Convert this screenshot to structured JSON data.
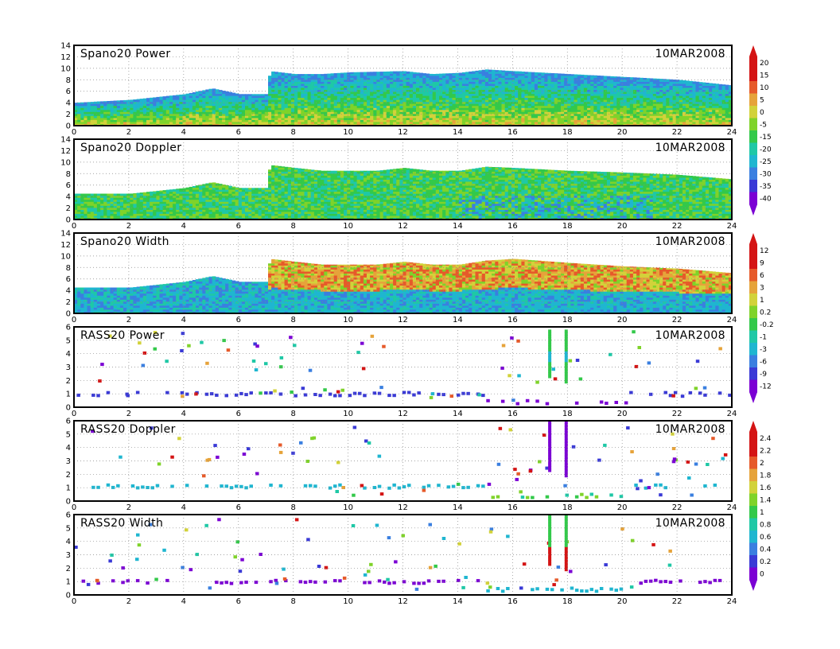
{
  "figure": {
    "date_label": "10MAR2008",
    "x_ticks": [
      "0",
      "2",
      "4",
      "6",
      "8",
      "10",
      "12",
      "14",
      "16",
      "18",
      "20",
      "22",
      "24"
    ]
  },
  "colors": {
    "power_scale": [
      "#7b00d4",
      "#3a3ad6",
      "#3a7fe0",
      "#1fb6d0",
      "#1fc8a6",
      "#33c94a",
      "#7fd32a",
      "#d2d23a",
      "#e6a33a",
      "#e65a2a",
      "#d41414"
    ],
    "rass_scale": [
      "#7b00d4",
      "#3a3ad6",
      "#3a7fe0",
      "#1fb6d0",
      "#1fc8a6",
      "#33c94a",
      "#7fd32a",
      "#d2d23a",
      "#e6a33a",
      "#e65a2a",
      "#d41414"
    ]
  },
  "chart_data": [
    {
      "type": "heatmap",
      "title": "Spano20 Power",
      "date": "10MAR2008",
      "xlabel": "",
      "ylabel": "",
      "xlim": [
        0,
        24
      ],
      "ylim": [
        0,
        14
      ],
      "y_ticks": [
        "0",
        "2",
        "4",
        "6",
        "8",
        "10",
        "12",
        "14"
      ],
      "colorbar": [
        "20",
        "15",
        "10",
        "5",
        "0",
        "-5",
        "-15",
        "-20",
        "-25",
        "-30",
        "-35",
        "-40"
      ],
      "echo_top": [
        [
          0,
          4
        ],
        [
          2,
          4.5
        ],
        [
          4,
          5.5
        ],
        [
          5,
          6.5
        ],
        [
          6,
          5.5
        ],
        [
          7,
          5.5
        ],
        [
          7.1,
          9.5
        ],
        [
          8,
          9
        ],
        [
          9,
          9
        ],
        [
          10,
          9.3
        ],
        [
          11,
          9.4
        ],
        [
          12,
          9.5
        ],
        [
          13,
          9
        ],
        [
          14,
          9.2
        ],
        [
          15,
          9.8
        ],
        [
          16,
          9.5
        ],
        [
          18,
          9
        ],
        [
          20,
          8.5
        ],
        [
          22,
          8
        ],
        [
          24,
          7
        ]
      ],
      "grid": true
    },
    {
      "type": "heatmap",
      "title": "Spano20 Doppler",
      "date": "10MAR2008",
      "xlabel": "",
      "ylabel": "",
      "xlim": [
        0,
        24
      ],
      "ylim": [
        0,
        14
      ],
      "y_ticks": [
        "0",
        "2",
        "4",
        "6",
        "8",
        "10",
        "12",
        "14"
      ],
      "echo_top": [
        [
          0,
          4.5
        ],
        [
          2,
          4.5
        ],
        [
          4,
          5.5
        ],
        [
          5,
          6.5
        ],
        [
          6,
          5.5
        ],
        [
          7,
          5.5
        ],
        [
          7.1,
          9.5
        ],
        [
          8,
          9
        ],
        [
          9,
          8.5
        ],
        [
          10,
          8.5
        ],
        [
          11,
          8.5
        ],
        [
          12,
          9
        ],
        [
          13,
          8.5
        ],
        [
          14,
          8.5
        ],
        [
          15,
          9.2
        ],
        [
          16,
          9
        ],
        [
          18,
          8.5
        ],
        [
          20,
          8.2
        ],
        [
          22,
          7.8
        ],
        [
          24,
          7
        ]
      ],
      "grid": true
    },
    {
      "type": "heatmap",
      "title": "Spano20 Width",
      "date": "10MAR2008",
      "xlabel": "",
      "ylabel": "",
      "xlim": [
        0,
        24
      ],
      "ylim": [
        0,
        14
      ],
      "y_ticks": [
        "0",
        "2",
        "4",
        "6",
        "8",
        "10",
        "12",
        "14"
      ],
      "colorbar": [
        "12",
        "9",
        "6",
        "3",
        "1",
        "0.2",
        "-0.2",
        "-1",
        "-3",
        "-6",
        "-9",
        "-12"
      ],
      "echo_top": [
        [
          0,
          4.5
        ],
        [
          2,
          4.5
        ],
        [
          4,
          5.5
        ],
        [
          5,
          6.5
        ],
        [
          6,
          5.5
        ],
        [
          7,
          5.5
        ],
        [
          7.1,
          9.5
        ],
        [
          8,
          9
        ],
        [
          9,
          8.5
        ],
        [
          10,
          8.5
        ],
        [
          11,
          8.5
        ],
        [
          12,
          9
        ],
        [
          13,
          8.5
        ],
        [
          14,
          8.5
        ],
        [
          15,
          9.2
        ],
        [
          16,
          9.5
        ],
        [
          18,
          8.8
        ],
        [
          20,
          8.2
        ],
        [
          22,
          7.8
        ],
        [
          24,
          7
        ]
      ],
      "grid": true
    },
    {
      "type": "scatter",
      "title": "RASS20 Power",
      "date": "10MAR2008",
      "xlabel": "",
      "ylabel": "",
      "xlim": [
        0,
        24
      ],
      "ylim": [
        0,
        6
      ],
      "y_ticks": [
        "0",
        "1",
        "2",
        "3",
        "4",
        "5",
        "6"
      ],
      "band_levels": [
        1.1,
        0.5
      ],
      "vertical_bars": [
        [
          17.3,
          2.2,
          5.8
        ],
        [
          17.9,
          1.8,
          5.8
        ]
      ],
      "grid": true
    },
    {
      "type": "scatter",
      "title": "RASS20 Doppler",
      "date": "10MAR2008",
      "xlabel": "",
      "ylabel": "",
      "xlim": [
        0,
        24
      ],
      "ylim": [
        0,
        6
      ],
      "y_ticks": [
        "0",
        "1",
        "2",
        "3",
        "4",
        "5",
        "6"
      ],
      "colorbar": [
        "2.4",
        "2.2",
        "2",
        "1.8",
        "1.6",
        "1.4",
        "1",
        "0.8",
        "0.6",
        "0.4",
        "0.2",
        "0"
      ],
      "band_levels": [
        1.2,
        0.5
      ],
      "vertical_bars": [
        [
          17.3,
          2.2,
          5.9
        ],
        [
          17.9,
          1.8,
          5.9
        ]
      ],
      "grid": true
    },
    {
      "type": "scatter",
      "title": "RASS20 Width",
      "date": "10MAR2008",
      "xlabel": "",
      "ylabel": "",
      "xlim": [
        0,
        24
      ],
      "ylim": [
        0,
        6
      ],
      "y_ticks": [
        "0",
        "1",
        "2",
        "3",
        "4",
        "5",
        "6"
      ],
      "band_levels": [
        1.1,
        0.5
      ],
      "vertical_bars": [
        [
          17.3,
          2.2,
          5.9
        ],
        [
          17.9,
          1.8,
          5.9
        ]
      ],
      "grid": true
    }
  ]
}
